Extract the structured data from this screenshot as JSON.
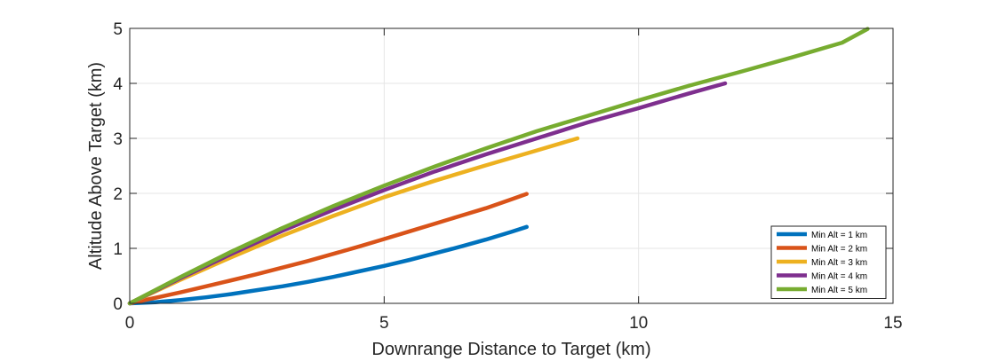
{
  "chart_data": {
    "type": "line",
    "title": "",
    "xlabel": "Downrange Distance to Target (km)",
    "ylabel": "Altitude Above Target (km)",
    "xlim": [
      0,
      15
    ],
    "ylim": [
      0,
      5
    ],
    "xticks": [
      0,
      5,
      10,
      15
    ],
    "yticks": [
      0,
      1,
      2,
      3,
      4,
      5
    ],
    "grid": true,
    "legend_position": "bottom-right",
    "series": [
      {
        "name": "Min Alt = 1 km",
        "color": "#0072BD",
        "x": [
          0,
          0.5,
          1,
          1.5,
          2,
          2.5,
          3,
          3.5,
          4,
          4.5,
          5,
          5.5,
          6,
          6.5,
          7,
          7.5,
          7.8
        ],
        "y": [
          0,
          0.02,
          0.06,
          0.11,
          0.17,
          0.24,
          0.31,
          0.39,
          0.48,
          0.58,
          0.68,
          0.79,
          0.91,
          1.03,
          1.16,
          1.3,
          1.39
        ]
      },
      {
        "name": "Min Alt = 2 km",
        "color": "#D95319",
        "x": [
          0,
          0.5,
          1,
          1.5,
          2,
          2.5,
          3,
          3.5,
          4,
          4.5,
          5,
          5.5,
          6,
          6.5,
          7,
          7.5,
          7.8
        ],
        "y": [
          0,
          0.1,
          0.2,
          0.31,
          0.42,
          0.53,
          0.65,
          0.77,
          0.9,
          1.03,
          1.17,
          1.31,
          1.45,
          1.59,
          1.73,
          1.89,
          1.99
        ]
      },
      {
        "name": "Min Alt = 3 km",
        "color": "#EDB120",
        "x": [
          0,
          1,
          2,
          3,
          4,
          5,
          6,
          7,
          8,
          8.8
        ],
        "y": [
          0,
          0.43,
          0.84,
          1.23,
          1.59,
          1.93,
          2.23,
          2.51,
          2.78,
          3.0
        ]
      },
      {
        "name": "Min Alt = 4 km",
        "color": "#7E2F8E",
        "x": [
          0,
          1,
          2,
          3,
          4,
          5,
          6,
          7,
          8,
          9,
          10,
          11,
          11.7
        ],
        "y": [
          0,
          0.46,
          0.9,
          1.32,
          1.7,
          2.06,
          2.4,
          2.71,
          3.0,
          3.29,
          3.55,
          3.82,
          4.0
        ]
      },
      {
        "name": "Min Alt = 5 km",
        "color": "#77AC30",
        "x": [
          0,
          1,
          2,
          3,
          4,
          5,
          6,
          7,
          8,
          9,
          10,
          11,
          12,
          13,
          14,
          14.5
        ],
        "y": [
          0,
          0.48,
          0.94,
          1.37,
          1.77,
          2.14,
          2.49,
          2.82,
          3.13,
          3.41,
          3.69,
          3.96,
          4.21,
          4.47,
          4.74,
          4.99
        ]
      }
    ]
  }
}
